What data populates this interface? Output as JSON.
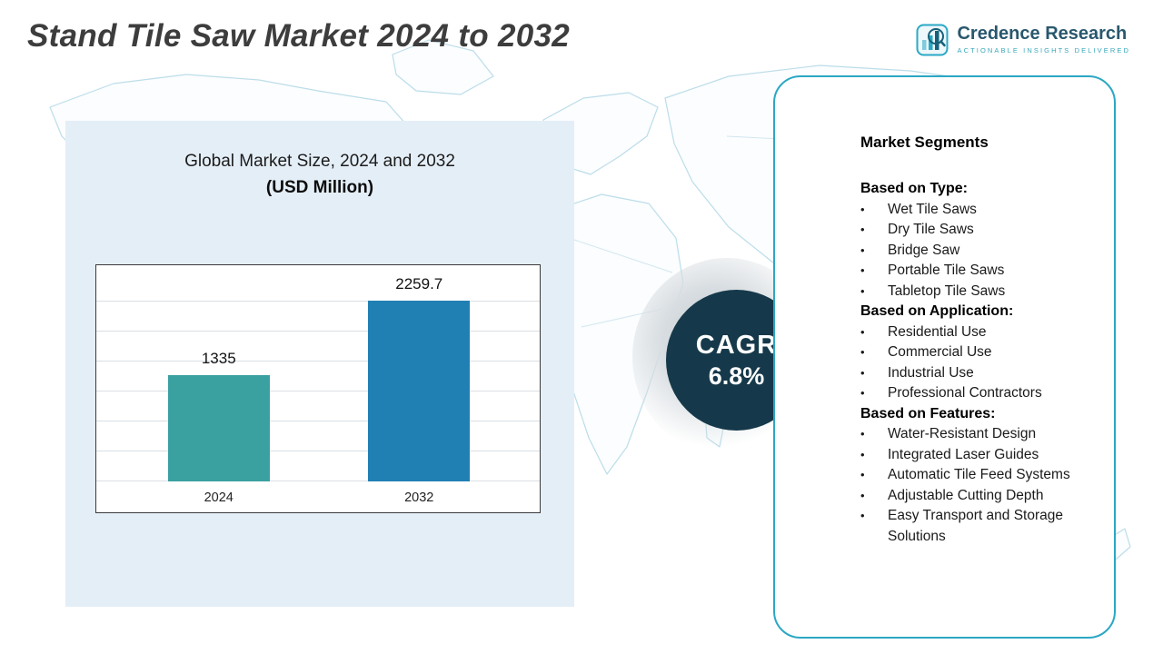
{
  "page": {
    "title": "Stand Tile Saw Market 2024 to 2032"
  },
  "logo": {
    "name": "Credence Research",
    "tagline": "Actionable Insights Delivered"
  },
  "chart_panel": {
    "title_line1": "Global Market Size, 2024 and 2032",
    "title_line2": "(USD Million)"
  },
  "chart_data": {
    "type": "bar",
    "title": "Global Market Size, 2024 and 2032 (USD Million)",
    "categories": [
      "2024",
      "2032"
    ],
    "values": [
      1335,
      2259.7
    ],
    "value_labels": [
      "1335",
      "2259.7"
    ],
    "series": [
      {
        "name": "Global Market Size (USD Million)",
        "values": [
          1335,
          2259.7
        ]
      }
    ],
    "colors": [
      "#3aa0a0",
      "#2080b4"
    ],
    "ylim": [
      0,
      2500
    ],
    "grid": true,
    "legend": "none",
    "xlabel": "",
    "ylabel": ""
  },
  "cagr": {
    "label": "CAGR",
    "value": "6.8%"
  },
  "segments": {
    "heading": "Market Segments",
    "groups": [
      {
        "title": "Based on Type:",
        "items": [
          "Wet Tile Saws",
          "Dry Tile Saws",
          "Bridge Saw",
          "Portable Tile Saws",
          "Tabletop Tile Saws"
        ]
      },
      {
        "title": "Based on Application:",
        "items": [
          "Residential Use",
          "Commercial Use",
          "Industrial Use",
          "Professional Contractors"
        ]
      },
      {
        "title": "Based on Features:",
        "items": [
          "Water-Resistant Design",
          "Integrated Laser Guides",
          "Automatic Tile Feed Systems",
          "Adjustable Cutting Depth",
          "Easy Transport and Storage Solutions"
        ]
      }
    ]
  },
  "colors": {
    "accent_teal_border": "#2ba7c4",
    "bar_2024": "#3aa0a0",
    "bar_2032": "#2080b4",
    "cagr_circle": "#15394a",
    "left_panel_bg": "#e4eef7",
    "map_line": "#bcdde9",
    "logo_name": "#29586e",
    "logo_tagline": "#38a8bb"
  }
}
